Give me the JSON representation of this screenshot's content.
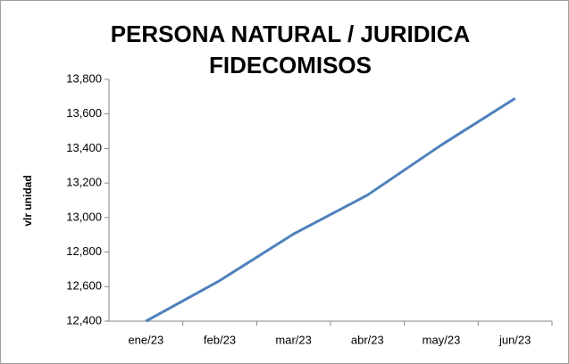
{
  "chart_data": {
    "type": "line",
    "title": [
      "PERSONA NATURAL / JURIDICA",
      "FIDECOMISOS"
    ],
    "y_label": "vlr unidad",
    "categories": [
      "ene/23",
      "feb/23",
      "mar/23",
      "abr/23",
      "may/23",
      "jun/23"
    ],
    "series": [
      {
        "name": "vlr unidad",
        "color": "#4f81bd",
        "values": [
          12400,
          12635,
          12905,
          13130,
          13420,
          13690
        ]
      }
    ],
    "ylim": [
      12400,
      13800
    ],
    "yticks": [
      {
        "value": 12400,
        "label": "12,400"
      },
      {
        "value": 12600,
        "label": "12,600"
      },
      {
        "value": 12800,
        "label": "12,800"
      },
      {
        "value": 13000,
        "label": "13,000"
      },
      {
        "value": 13200,
        "label": "13,200"
      },
      {
        "value": 13400,
        "label": "13,400"
      },
      {
        "value": 13600,
        "label": "13,600"
      },
      {
        "value": 13800,
        "label": "13,800"
      }
    ],
    "grid": false,
    "legend": false
  }
}
